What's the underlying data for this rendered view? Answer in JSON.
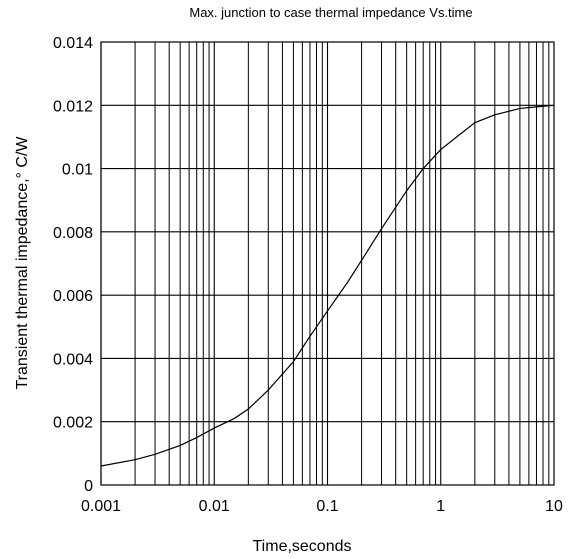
{
  "chart_data": {
    "type": "line",
    "title": "Max. junction to case thermal impedance  Vs.time",
    "xlabel": "Time,seconds",
    "ylabel": "Transient thermal impedance,° C/W",
    "xscale": "log",
    "xlim": [
      0.001,
      10
    ],
    "ylim": [
      0,
      0.014
    ],
    "grid": true,
    "x_tick_labels": [
      "0.001",
      "0.01",
      "0.1",
      "1",
      "10"
    ],
    "y_tick_labels": [
      "0",
      "0.002",
      "0.004",
      "0.006",
      "0.008",
      "0.01",
      "0.012",
      "0.014"
    ],
    "x_ticks": [
      0.001,
      0.01,
      0.1,
      1,
      10
    ],
    "y_ticks": [
      0,
      0.002,
      0.004,
      0.006,
      0.008,
      0.01,
      0.012,
      0.014
    ],
    "series": [
      {
        "x": [
          0.001,
          0.002,
          0.003,
          0.005,
          0.007,
          0.01,
          0.015,
          0.02,
          0.03,
          0.05,
          0.07,
          0.1,
          0.15,
          0.2,
          0.3,
          0.5,
          0.7,
          1,
          1.5,
          2,
          3,
          5,
          7,
          10
        ],
        "y": [
          0.0006,
          0.0008,
          0.00097,
          0.00125,
          0.0015,
          0.0018,
          0.0021,
          0.0024,
          0.003,
          0.0039,
          0.0047,
          0.0055,
          0.0064,
          0.0071,
          0.0081,
          0.0093,
          0.01,
          0.0106,
          0.0111,
          0.01145,
          0.0117,
          0.0119,
          0.01195,
          0.012
        ]
      }
    ]
  }
}
